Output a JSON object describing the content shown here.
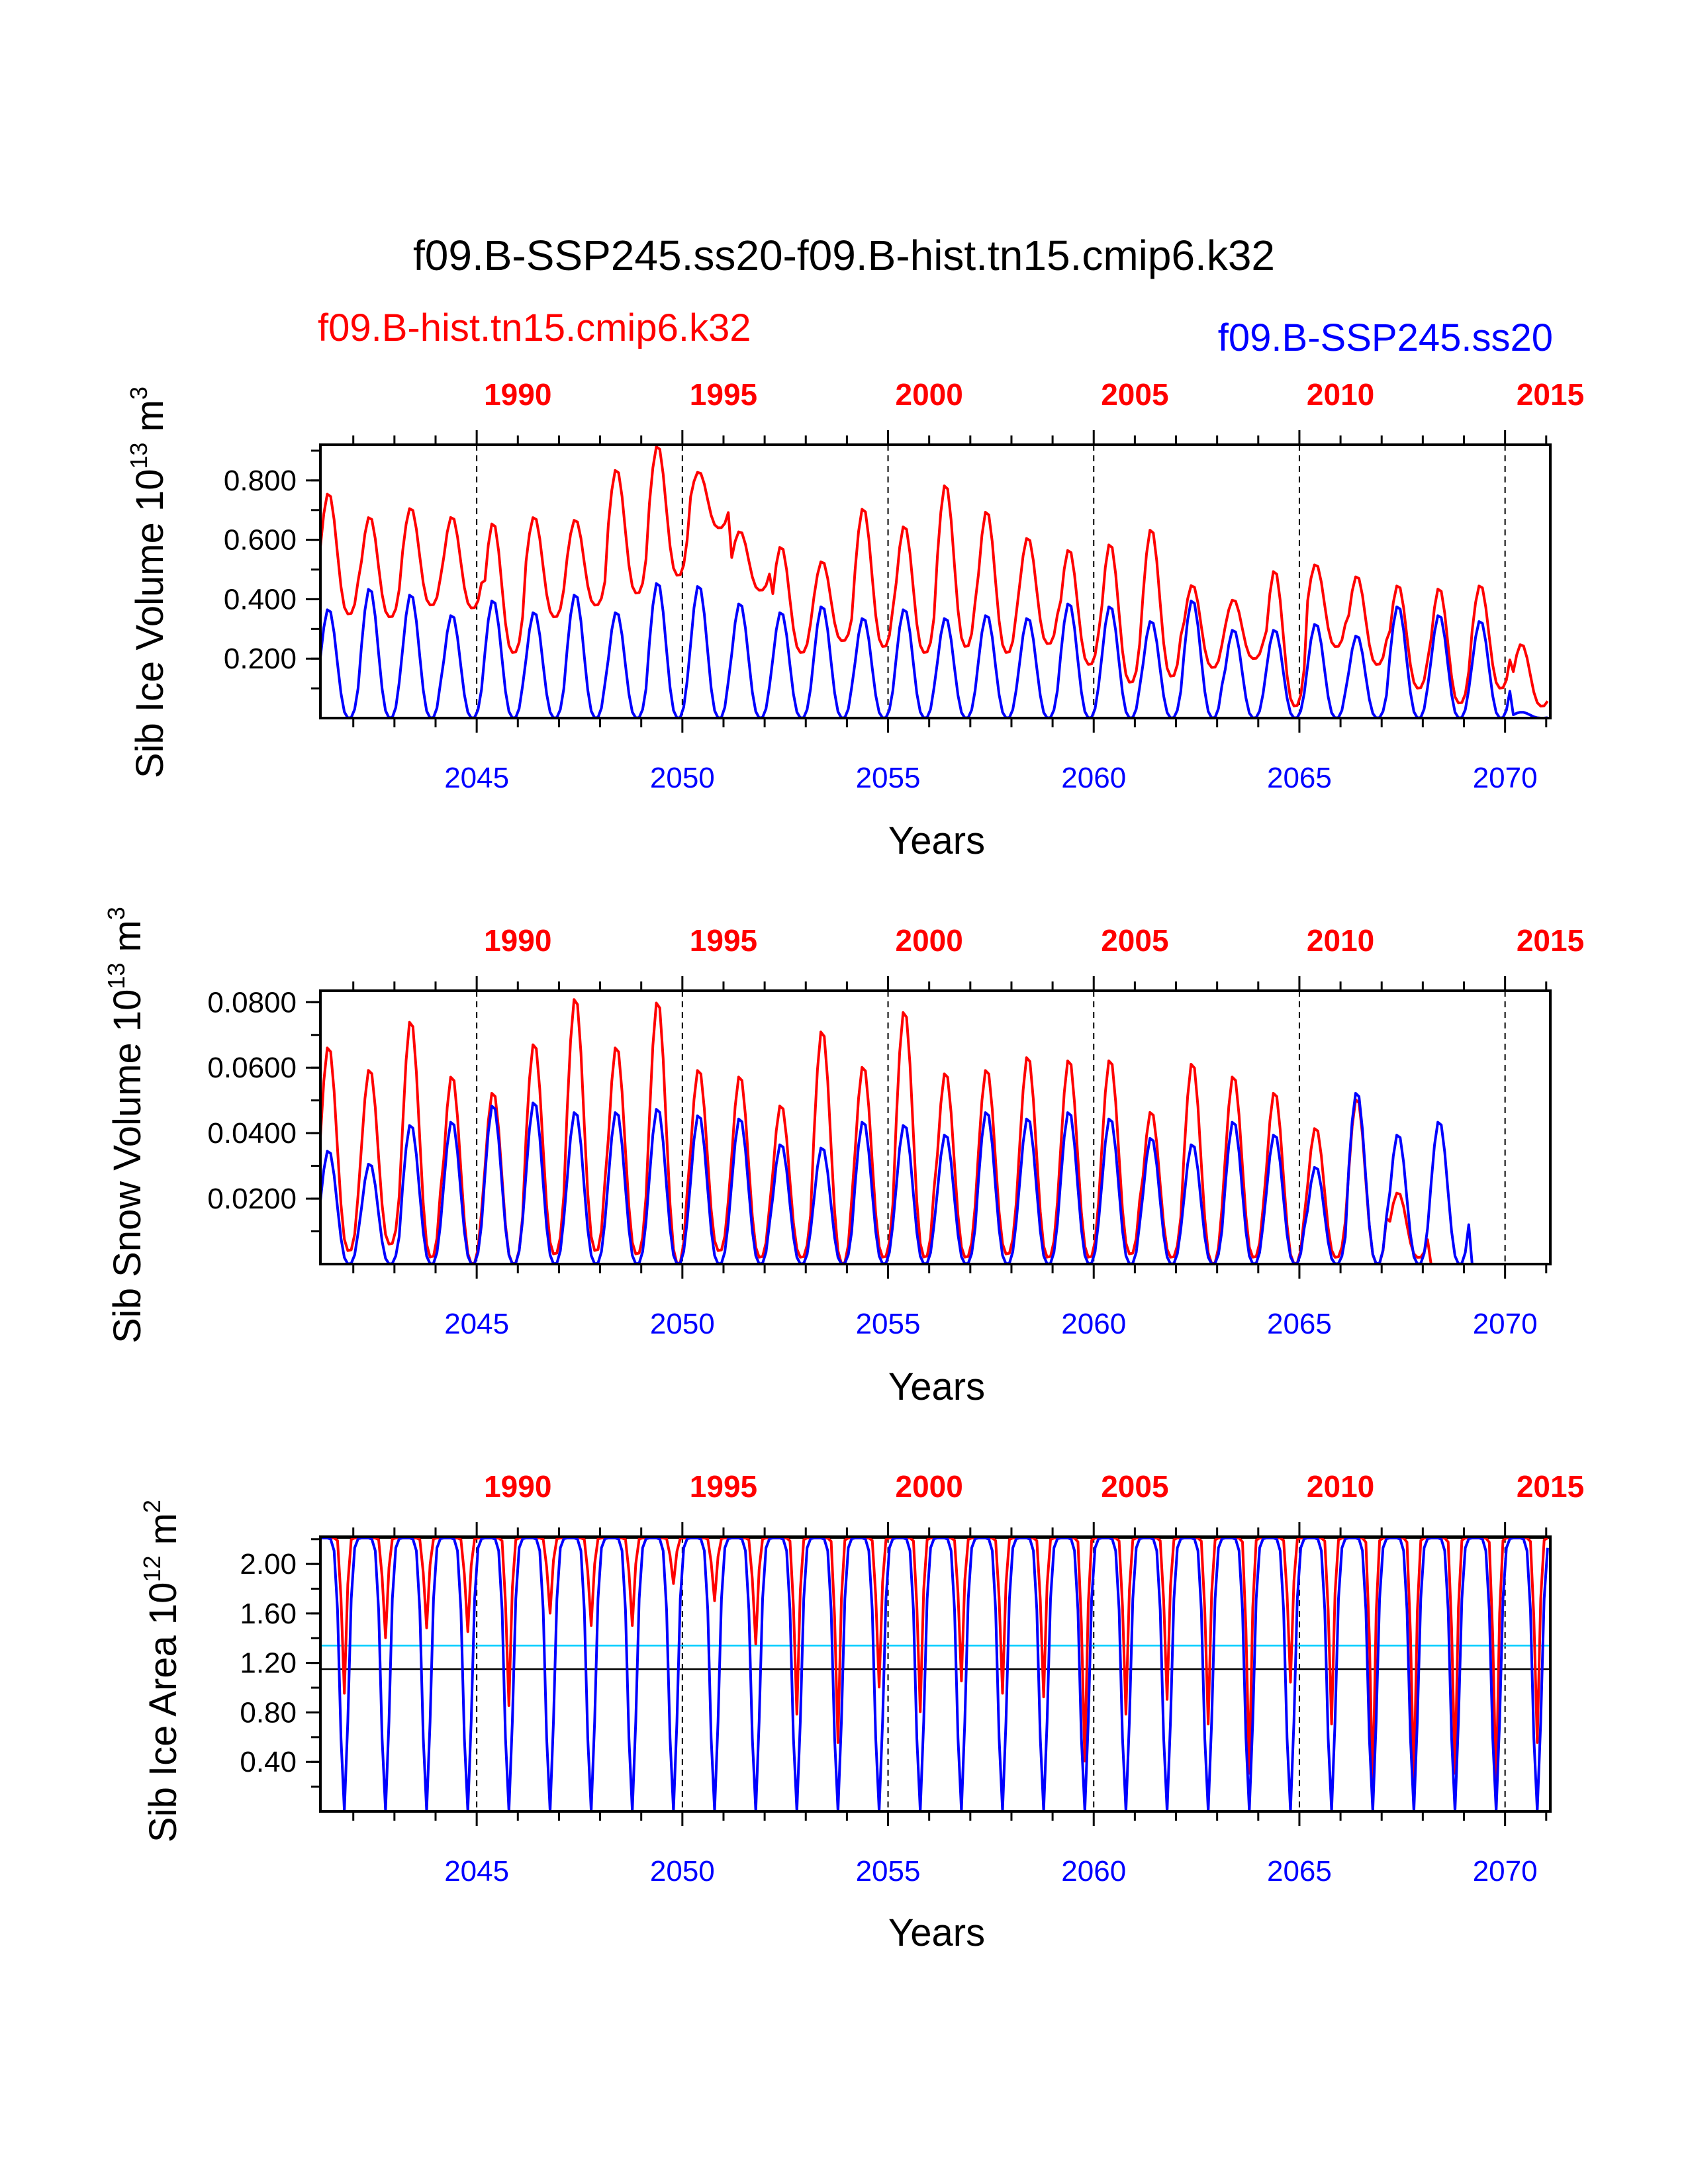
{
  "title": "f09.B-SSP245.ss20-f09.B-hist.tn15.cmip6.k32",
  "legend": {
    "red_label": "f09.B-hist.tn15.cmip6.k32",
    "blue_label": "f09.B-SSP245.ss20"
  },
  "colors": {
    "red": "#ff0000",
    "blue": "#0000ff",
    "cyan": "#00ccff",
    "black": "#000000"
  },
  "chart_data": [
    {
      "type": "line",
      "ylabel": "Sib Ice Volume 10",
      "ylabel_exp": "13",
      "ylabel_unit": " m",
      "ylabel_unit_exp": "3",
      "xlabel": "Years",
      "ylim": [
        0,
        0.92
      ],
      "yticks": [
        "0.200",
        "0.400",
        "0.600",
        "0.800"
      ],
      "ytick_values": [
        0.2,
        0.4,
        0.6,
        0.8
      ],
      "bottom_ticks": [
        "2045",
        "2050",
        "2055",
        "2060",
        "2065",
        "2070"
      ],
      "top_ticks": [
        "1990",
        "1995",
        "2000",
        "2005",
        "2010",
        "2015"
      ],
      "series": [
        {
          "name": "f09.B-hist.tn15.cmip6.k32",
          "color": "red",
          "annual_max": [
            0.76,
            0.68,
            0.71,
            0.68,
            0.66,
            0.68,
            0.67,
            0.84,
            0.92,
            0.83,
            0.63,
            0.58,
            0.53,
            0.71,
            0.65,
            0.79,
            0.7,
            0.61,
            0.57,
            0.59,
            0.64,
            0.45,
            0.4,
            0.5,
            0.52,
            0.48,
            0.45,
            0.44,
            0.45,
            0.25
          ],
          "annual_min": [
            0.35,
            0.34,
            0.38,
            0.37,
            0.22,
            0.34,
            0.38,
            0.42,
            0.48,
            0.64,
            0.43,
            0.22,
            0.26,
            0.24,
            0.22,
            0.24,
            0.22,
            0.25,
            0.18,
            0.12,
            0.14,
            0.17,
            0.2,
            0.04,
            0.24,
            0.18,
            0.1,
            0.05,
            0.1,
            0.04
          ]
        },
        {
          "name": "f09.B-SSP245.ss20",
          "color": "blue",
          "annual_max": [
            0.37,
            0.44,
            0.42,
            0.35,
            0.4,
            0.36,
            0.42,
            0.36,
            0.46,
            0.45,
            0.39,
            0.36,
            0.38,
            0.34,
            0.37,
            0.34,
            0.35,
            0.34,
            0.39,
            0.38,
            0.33,
            0.4,
            0.3,
            0.3,
            0.32,
            0.28,
            0.38,
            0.35,
            0.33,
            0.02
          ],
          "annual_min": [
            0.0,
            0.0,
            0.0,
            0.0,
            0.0,
            0.0,
            0.0,
            0.0,
            0.0,
            0.0,
            0.0,
            0.0,
            0.0,
            0.0,
            0.0,
            0.0,
            0.0,
            0.0,
            0.0,
            0.0,
            0.0,
            0.0,
            0.0,
            0.0,
            0.0,
            0.0,
            0.0,
            0.0,
            0.0,
            0.0
          ]
        }
      ]
    },
    {
      "type": "line",
      "ylabel": "Sib Snow Volume 10",
      "ylabel_exp": "13",
      "ylabel_unit": " m",
      "ylabel_unit_exp": "3",
      "xlabel": "Years",
      "ylim": [
        0,
        0.0835
      ],
      "yticks": [
        "0.0200",
        "0.0400",
        "0.0600",
        "0.0800"
      ],
      "ytick_values": [
        0.02,
        0.04,
        0.06,
        0.08
      ],
      "bottom_ticks": [
        "2045",
        "2050",
        "2055",
        "2060",
        "2065",
        "2070"
      ],
      "top_ticks": [
        "1990",
        "1995",
        "2000",
        "2005",
        "2010",
        "2015"
      ],
      "series": [
        {
          "name": "f09.B-hist.tn15.cmip6.k32",
          "color": "red",
          "annual_max": [
            0.067,
            0.06,
            0.075,
            0.058,
            0.053,
            0.068,
            0.082,
            0.067,
            0.081,
            0.06,
            0.058,
            0.049,
            0.072,
            0.061,
            0.078,
            0.059,
            0.06,
            0.064,
            0.063,
            0.063,
            0.047,
            0.062,
            0.058,
            0.053,
            0.042,
            0.051,
            0.022,
            0.0,
            0.0,
            0.0
          ],
          "annual_min": [
            0.004,
            0.006,
            0.002,
            0.0,
            0.0,
            0.003,
            0.004,
            0.003,
            0.0,
            0.004,
            0.002,
            0.002,
            0.0,
            0.002,
            0.002,
            0.002,
            0.003,
            0.002,
            0.002,
            0.003,
            0.002,
            0.0,
            0.002,
            0.0,
            0.002,
            0.0,
            0.002,
            0.0,
            0.0,
            0.0
          ]
        },
        {
          "name": "f09.B-SSP245.ss20",
          "color": "blue",
          "annual_max": [
            0.035,
            0.031,
            0.043,
            0.044,
            0.049,
            0.05,
            0.047,
            0.047,
            0.048,
            0.046,
            0.045,
            0.037,
            0.036,
            0.044,
            0.043,
            0.04,
            0.047,
            0.045,
            0.047,
            0.045,
            0.039,
            0.037,
            0.044,
            0.04,
            0.03,
            0.053,
            0.04,
            0.044,
            0.0,
            0.0
          ],
          "annual_min": [
            0.0,
            0.0,
            0.0,
            0.0,
            0.0,
            0.0,
            0.0,
            0.0,
            0.0,
            0.0,
            0.0,
            0.0,
            0.0,
            0.0,
            0.0,
            0.0,
            0.0,
            0.0,
            0.0,
            0.0,
            0.0,
            0.0,
            0.0,
            0.0,
            0.0,
            0.0,
            0.0,
            0.0,
            0.0,
            0.0
          ]
        }
      ]
    },
    {
      "type": "line",
      "ylabel": "Sib Ice Area 10",
      "ylabel_exp": "12",
      "ylabel_unit": " m",
      "ylabel_unit_exp": "2",
      "xlabel": "Years",
      "ylim": [
        0,
        2.22
      ],
      "yticks": [
        "0.40",
        "0.80",
        "1.20",
        "1.60",
        "2.00"
      ],
      "ytick_values": [
        0.4,
        0.8,
        1.2,
        1.6,
        2.0
      ],
      "reference_lines": [
        {
          "value": 2.21,
          "color": "black"
        },
        {
          "value": 1.34,
          "color": "cyan"
        },
        {
          "value": 1.15,
          "color": "black"
        }
      ],
      "bottom_ticks": [
        "2045",
        "2050",
        "2055",
        "2060",
        "2065",
        "2070"
      ],
      "top_ticks": [
        "1990",
        "1995",
        "2000",
        "2005",
        "2010",
        "2015"
      ],
      "series": [
        {
          "name": "f09.B-hist.tn15.cmip6.k32",
          "color": "red",
          "annual_max": [
            2.21,
            2.21,
            2.21,
            2.21,
            2.21,
            2.21,
            2.21,
            2.21,
            2.21,
            2.21,
            2.21,
            2.21,
            2.21,
            2.21,
            2.21,
            2.21,
            2.21,
            2.21,
            2.21,
            2.21,
            2.21,
            2.21,
            2.21,
            2.21,
            2.21,
            2.21,
            2.21,
            2.21,
            2.21,
            2.21
          ],
          "annual_min": [
            0.95,
            1.4,
            1.48,
            1.45,
            0.85,
            1.6,
            1.5,
            1.5,
            1.84,
            1.7,
            1.35,
            0.78,
            0.55,
            1.0,
            0.8,
            1.05,
            0.95,
            0.92,
            0.4,
            0.78,
            0.9,
            0.7,
            0.3,
            1.04,
            0.7,
            0.15,
            0.2,
            0.3,
            0.15,
            0.55
          ]
        },
        {
          "name": "f09.B-SSP245.ss20",
          "color": "blue",
          "annual_max": [
            2.21,
            2.21,
            2.21,
            2.21,
            2.21,
            2.21,
            2.21,
            2.21,
            2.21,
            2.21,
            2.21,
            2.21,
            2.21,
            2.21,
            2.21,
            2.21,
            2.21,
            2.21,
            2.21,
            2.21,
            2.21,
            2.21,
            2.21,
            2.21,
            2.21,
            2.21,
            2.21,
            2.21,
            2.21,
            2.21
          ],
          "annual_min": [
            0.0,
            0.0,
            0.0,
            0.0,
            0.0,
            0.0,
            0.0,
            0.0,
            0.0,
            0.0,
            0.0,
            0.0,
            0.0,
            0.0,
            0.0,
            0.0,
            0.0,
            0.0,
            0.0,
            0.0,
            0.0,
            0.0,
            0.0,
            0.0,
            0.0,
            0.0,
            0.0,
            0.0,
            0.0,
            0.0
          ]
        }
      ]
    }
  ]
}
